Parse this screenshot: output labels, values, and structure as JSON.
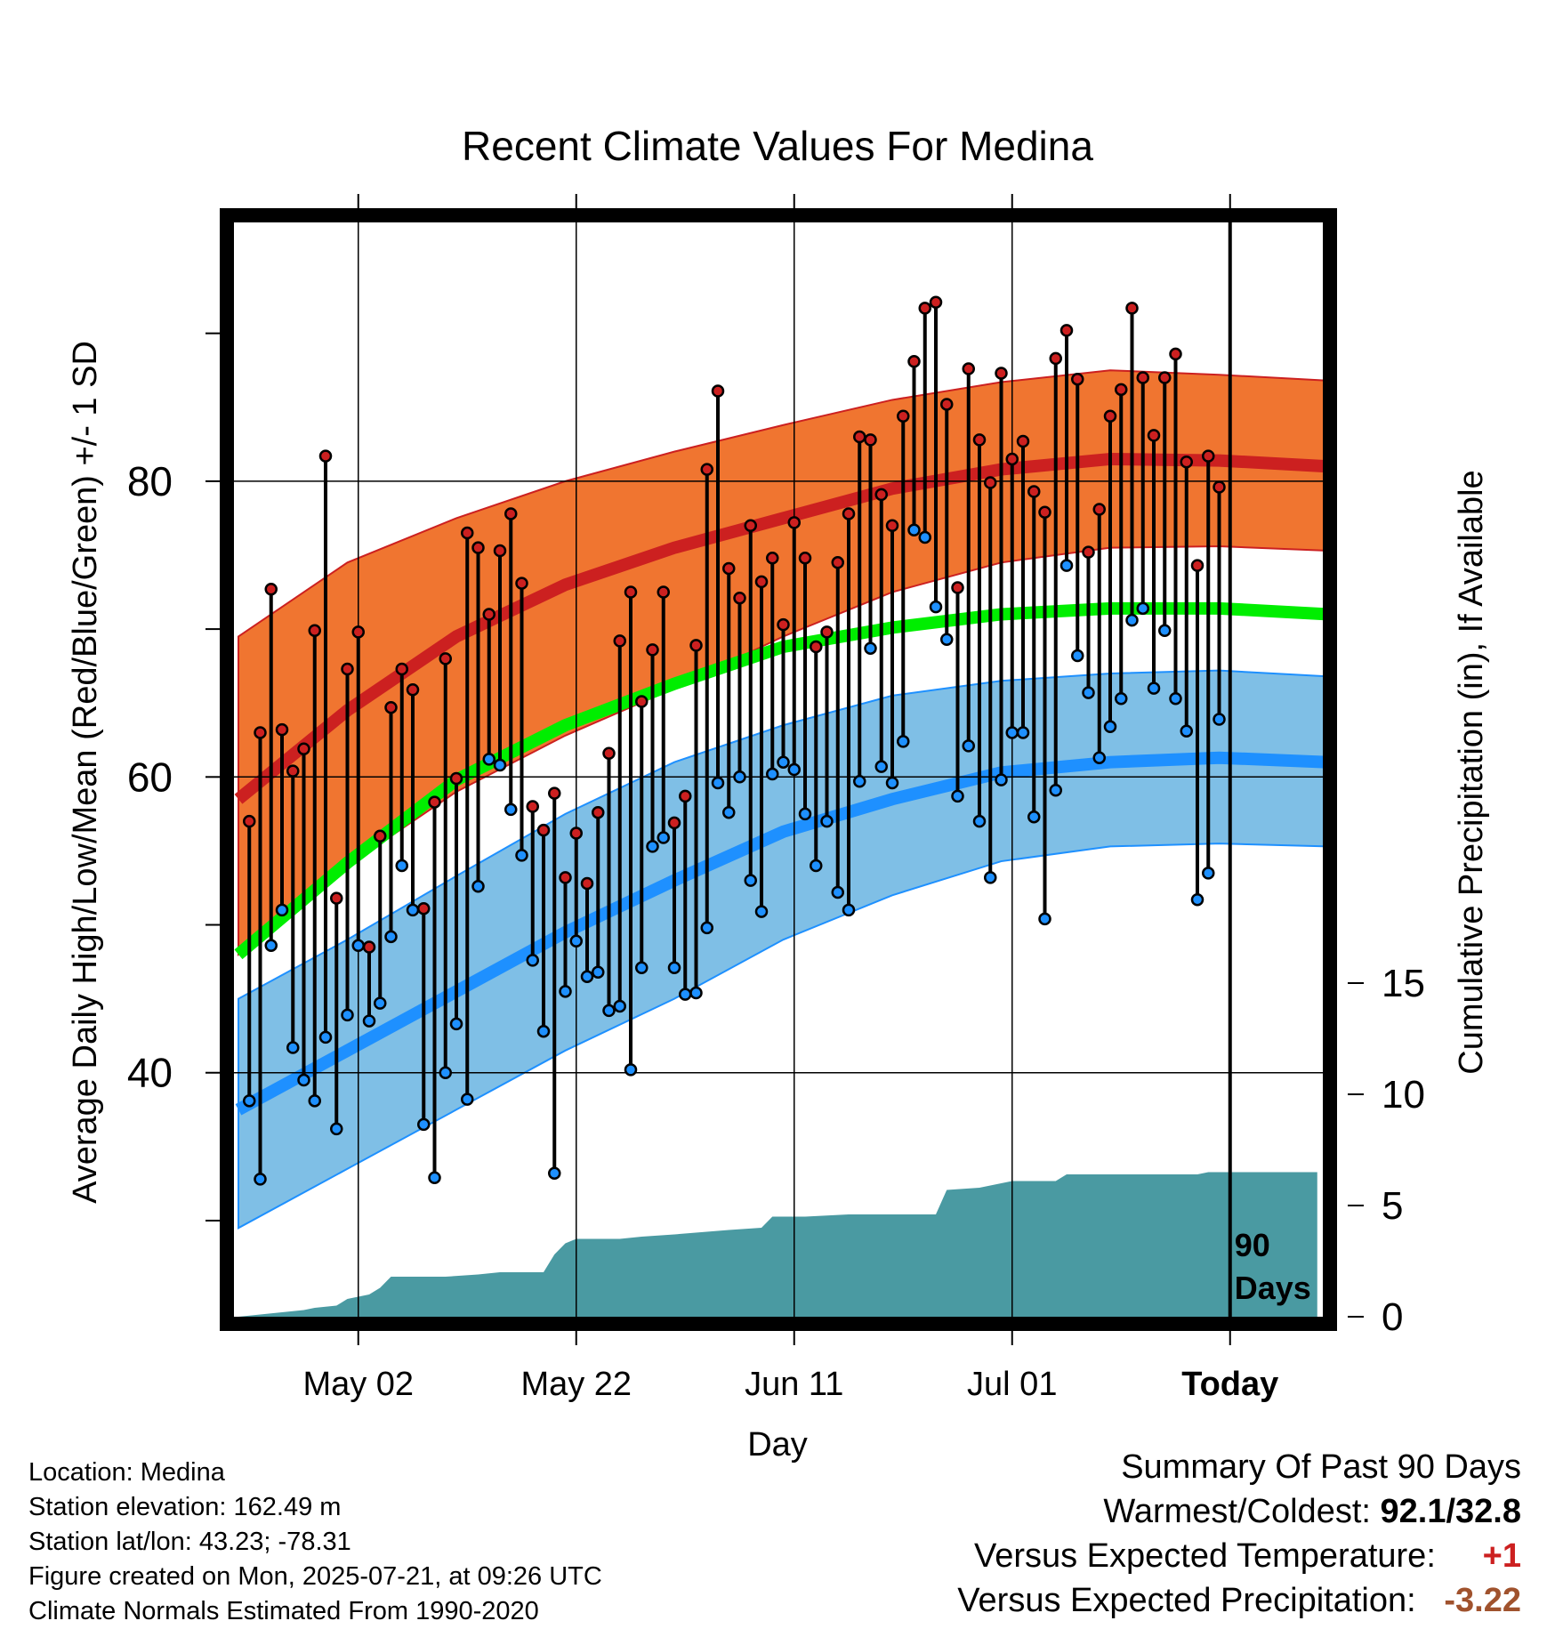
{
  "chart_data": {
    "type": "line",
    "title": "Recent Climate Values For Medina",
    "xlabel": "Day",
    "ylabel": "Average Daily High/Low/Mean (Red/Blue/Green) +/- 1 SD",
    "y2label": "Cumulative Precipitation (in), If Available",
    "x_ticks": [
      {
        "label": "May 02",
        "day": 11
      },
      {
        "label": "May 22",
        "day": 31
      },
      {
        "label": "Jun 11",
        "day": 51
      },
      {
        "label": "Jul 01",
        "day": 71
      },
      {
        "label": "Today",
        "day": 91
      }
    ],
    "y_ticks": [
      40,
      60,
      80
    ],
    "y_minor_ticks": [
      30,
      50,
      70,
      90
    ],
    "y_range": [
      23.5,
      97.5
    ],
    "precip_ticks": [
      0,
      5,
      10,
      15
    ],
    "today_label": "90 Days",
    "normals": {
      "days": [
        0,
        10,
        20,
        30,
        40,
        50,
        60,
        70,
        80,
        90,
        100
      ],
      "high_mean": [
        58.5,
        64.5,
        69.5,
        73.0,
        75.5,
        77.5,
        79.5,
        80.8,
        81.5,
        81.4,
        81.0
      ],
      "high_sd_top": [
        69.5,
        74.5,
        77.5,
        80.0,
        82.0,
        83.8,
        85.5,
        86.7,
        87.5,
        87.2,
        86.8
      ],
      "high_sd_bot": [
        48.0,
        54.0,
        59.0,
        62.8,
        66.0,
        69.5,
        72.5,
        74.5,
        75.5,
        75.6,
        75.3
      ],
      "mean": [
        48.0,
        54.2,
        59.8,
        63.5,
        66.3,
        68.8,
        70.1,
        71.0,
        71.4,
        71.4,
        71.0
      ],
      "low_mean": [
        37.5,
        41.5,
        45.5,
        49.5,
        53.0,
        56.3,
        58.5,
        60.3,
        61.0,
        61.3,
        61.0
      ],
      "low_sd_top": [
        45.0,
        49.0,
        53.3,
        57.5,
        61.0,
        63.5,
        65.5,
        66.5,
        67.0,
        67.2,
        66.8
      ],
      "low_sd_bot": [
        29.5,
        33.5,
        37.5,
        41.5,
        45.0,
        49.0,
        52.0,
        54.3,
        55.3,
        55.5,
        55.3
      ]
    },
    "highs": [
      57.0,
      63.0,
      72.7,
      63.2,
      60.4,
      61.9,
      69.9,
      81.7,
      51.8,
      67.3,
      69.8,
      48.5,
      56.0,
      64.7,
      67.3,
      65.9,
      51.1,
      58.3,
      68.0,
      59.9,
      76.5,
      75.5,
      71.0,
      75.3,
      77.8,
      73.1,
      58.0,
      56.4,
      58.9,
      53.2,
      56.2,
      52.8,
      57.6,
      61.6,
      69.2,
      72.5,
      65.1,
      68.6,
      72.5,
      56.9,
      58.7,
      68.9,
      80.8,
      86.1,
      74.1,
      72.1,
      77.0,
      73.2,
      74.8,
      70.3,
      77.2,
      74.8,
      68.8,
      69.8,
      74.5,
      77.8,
      83.0,
      82.8,
      79.1,
      77.0,
      84.4,
      88.1,
      91.7,
      92.1,
      85.2,
      72.8,
      87.6,
      82.8,
      79.9,
      87.3,
      81.5,
      82.7,
      79.3,
      77.9,
      88.3,
      90.2,
      86.9,
      75.2,
      78.1,
      84.4,
      86.2,
      91.7,
      87.0,
      83.1,
      87.0,
      88.6,
      81.3,
      74.3,
      81.7,
      79.6
    ],
    "lows": [
      38.1,
      32.8,
      48.6,
      51.0,
      41.7,
      39.5,
      38.1,
      42.4,
      36.2,
      43.9,
      48.6,
      43.5,
      44.7,
      49.2,
      54.0,
      51.0,
      36.5,
      32.9,
      40.0,
      43.3,
      38.2,
      52.6,
      61.2,
      60.8,
      57.8,
      54.7,
      47.6,
      42.8,
      33.2,
      45.5,
      48.9,
      46.5,
      46.8,
      44.2,
      44.5,
      40.2,
      47.1,
      55.3,
      55.9,
      47.1,
      45.3,
      45.4,
      49.8,
      59.6,
      57.6,
      60.0,
      53.0,
      50.9,
      60.2,
      61.0,
      60.5,
      57.5,
      54.0,
      57.0,
      52.2,
      51.0,
      59.7,
      68.7,
      60.7,
      59.6,
      62.4,
      76.7,
      76.2,
      71.5,
      69.3,
      58.7,
      62.1,
      57.0,
      53.2,
      59.8,
      63.0,
      63.0,
      57.3,
      50.4,
      59.1,
      74.3,
      68.2,
      65.7,
      61.3,
      63.4,
      65.3,
      70.6,
      71.4,
      66.0,
      69.9,
      65.3,
      63.1,
      51.7,
      53.5,
      63.9
    ],
    "precip_cumulative": {
      "days": [
        0,
        4,
        6,
        7,
        9,
        10,
        12,
        13,
        14,
        16,
        19,
        22,
        24,
        26,
        28,
        29,
        30,
        31,
        32,
        35,
        37,
        40,
        45,
        48,
        49,
        52,
        56,
        60,
        64,
        65,
        68,
        70,
        71,
        75,
        76,
        80,
        84,
        88,
        89,
        99
      ],
      "values": [
        0,
        0.2,
        0.3,
        0.4,
        0.5,
        0.8,
        1.0,
        1.3,
        1.8,
        1.8,
        1.8,
        1.9,
        2.0,
        2.0,
        2.0,
        2.8,
        3.3,
        3.5,
        3.5,
        3.5,
        3.6,
        3.7,
        3.9,
        4.0,
        4.5,
        4.5,
        4.6,
        4.6,
        4.6,
        5.7,
        5.8,
        6.0,
        6.1,
        6.1,
        6.4,
        6.4,
        6.4,
        6.4,
        6.5,
        6.5
      ]
    },
    "colors": {
      "high_band": "#f07530",
      "high_line": "#cc2020",
      "mean_line": "#00ee00",
      "low_band": "#7fbfe6",
      "low_line": "#1e90ff",
      "precip": "#4a9aa2",
      "high_dot": "#cc2020",
      "low_dot": "#1e90ff"
    }
  },
  "info": {
    "location": "Location: Medina",
    "elevation": "Station elevation: 162.49 m",
    "latlon": "Station lat/lon: 43.23; -78.31",
    "created": "Figure created on Mon, 2025-07-21, at 09:26 UTC",
    "normals": "Climate Normals Estimated From 1990-2020"
  },
  "summary": {
    "heading": "Summary Of Past 90 Days",
    "warm_cold_label": "Warmest/Coldest:",
    "warm_cold_value": "92.1/32.8",
    "temp_label": "Versus Expected Temperature:",
    "temp_value": "+1",
    "temp_color": "#cc2020",
    "precip_label": "Versus Expected Precipitation:",
    "precip_value": "-3.22",
    "precip_color": "#a0522d"
  }
}
